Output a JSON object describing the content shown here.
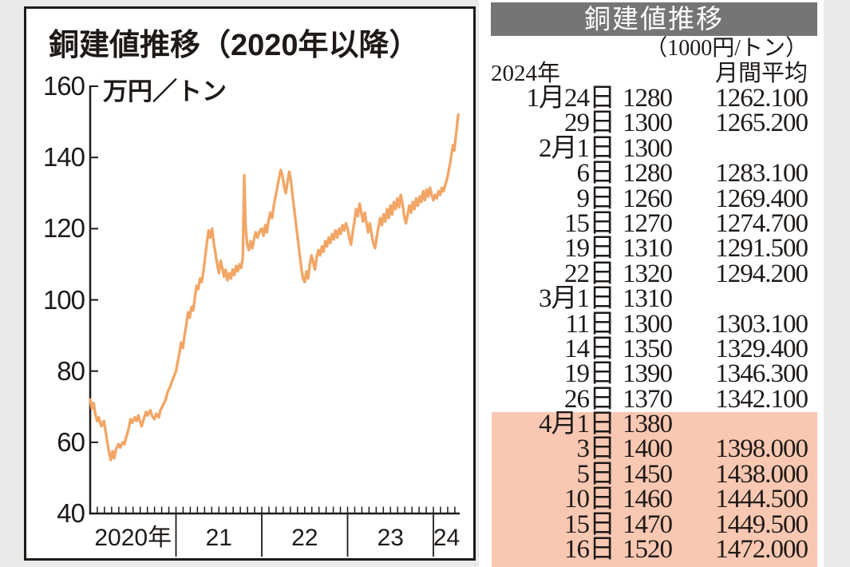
{
  "page": {
    "background": "#EAEAEA"
  },
  "chart": {
    "title": "銅建値推移（2020年以降）",
    "unit": "万円／トン",
    "line_color": "#F2A666",
    "axis_color": "#1F1A17"
  },
  "chart_data": {
    "type": "line",
    "title": "銅建値推移（2020年以降）",
    "ylabel": "万円／トン",
    "xlabel": "",
    "ylim": [
      40,
      160
    ],
    "xlim": [
      2020,
      2024.33
    ],
    "grid": false,
    "y_ticks": [
      160,
      140,
      120,
      100,
      80,
      60,
      40
    ],
    "x_tick_labels": [
      "2020年",
      "21",
      "22",
      "23",
      "24"
    ],
    "series": [
      {
        "name": "銅建値",
        "points": [
          [
            2020.0,
            72
          ],
          [
            2020.02,
            69.5
          ],
          [
            2020.04,
            71
          ],
          [
            2020.06,
            68
          ],
          [
            2020.08,
            66
          ],
          [
            2020.1,
            67
          ],
          [
            2020.13,
            64.5
          ],
          [
            2020.16,
            66
          ],
          [
            2020.18,
            63
          ],
          [
            2020.2,
            60
          ],
          [
            2020.22,
            57
          ],
          [
            2020.24,
            55
          ],
          [
            2020.26,
            57.5
          ],
          [
            2020.28,
            55.5
          ],
          [
            2020.3,
            58
          ],
          [
            2020.33,
            59.5
          ],
          [
            2020.35,
            58.5
          ],
          [
            2020.38,
            60
          ],
          [
            2020.4,
            59.5
          ],
          [
            2020.42,
            61.5
          ],
          [
            2020.45,
            64
          ],
          [
            2020.47,
            66.5
          ],
          [
            2020.49,
            65.5
          ],
          [
            2020.52,
            67
          ],
          [
            2020.54,
            66
          ],
          [
            2020.56,
            67.5
          ],
          [
            2020.58,
            66
          ],
          [
            2020.6,
            64.5
          ],
          [
            2020.63,
            67
          ],
          [
            2020.65,
            68.5
          ],
          [
            2020.67,
            67.5
          ],
          [
            2020.7,
            69
          ],
          [
            2020.72,
            67.5
          ],
          [
            2020.75,
            66.5
          ],
          [
            2020.77,
            68
          ],
          [
            2020.8,
            67
          ],
          [
            2020.82,
            69
          ],
          [
            2020.85,
            70.5
          ],
          [
            2020.88,
            72
          ],
          [
            2020.9,
            74
          ],
          [
            2020.93,
            75.5
          ],
          [
            2020.96,
            77.5
          ],
          [
            2021.0,
            80
          ],
          [
            2021.02,
            82.5
          ],
          [
            2021.04,
            85
          ],
          [
            2021.06,
            88
          ],
          [
            2021.08,
            86.5
          ],
          [
            2021.1,
            90
          ],
          [
            2021.12,
            93
          ],
          [
            2021.14,
            96.5
          ],
          [
            2021.16,
            95
          ],
          [
            2021.18,
            98
          ],
          [
            2021.2,
            97
          ],
          [
            2021.22,
            100.5
          ],
          [
            2021.24,
            104
          ],
          [
            2021.26,
            103
          ],
          [
            2021.28,
            106
          ],
          [
            2021.3,
            105
          ],
          [
            2021.32,
            108
          ],
          [
            2021.34,
            112
          ],
          [
            2021.36,
            116
          ],
          [
            2021.38,
            119.5
          ],
          [
            2021.4,
            117.5
          ],
          [
            2021.42,
            120
          ],
          [
            2021.44,
            116
          ],
          [
            2021.46,
            113
          ],
          [
            2021.48,
            110
          ],
          [
            2021.5,
            107.5
          ],
          [
            2021.52,
            111
          ],
          [
            2021.54,
            109
          ],
          [
            2021.56,
            106.5
          ],
          [
            2021.58,
            108.5
          ],
          [
            2021.6,
            105.5
          ],
          [
            2021.62,
            107.5
          ],
          [
            2021.64,
            106
          ],
          [
            2021.66,
            108.5
          ],
          [
            2021.68,
            107
          ],
          [
            2021.7,
            109.5
          ],
          [
            2021.72,
            108
          ],
          [
            2021.74,
            110
          ],
          [
            2021.76,
            109
          ],
          [
            2021.78,
            112
          ],
          [
            2021.795,
            135
          ],
          [
            2021.81,
            121
          ],
          [
            2021.83,
            115.5
          ],
          [
            2021.85,
            114
          ],
          [
            2021.87,
            116.5
          ],
          [
            2021.89,
            114.5
          ],
          [
            2021.91,
            117
          ],
          [
            2021.93,
            119
          ],
          [
            2021.95,
            117.5
          ],
          [
            2021.98,
            119.5
          ],
          [
            2022.0,
            120
          ],
          [
            2022.02,
            118
          ],
          [
            2022.04,
            121
          ],
          [
            2022.06,
            119
          ],
          [
            2022.08,
            122.5
          ],
          [
            2022.1,
            124.5
          ],
          [
            2022.12,
            123
          ],
          [
            2022.14,
            126.5
          ],
          [
            2022.16,
            129
          ],
          [
            2022.18,
            131.5
          ],
          [
            2022.2,
            134
          ],
          [
            2022.22,
            136.5
          ],
          [
            2022.24,
            135
          ],
          [
            2022.26,
            132
          ],
          [
            2022.28,
            130
          ],
          [
            2022.3,
            133
          ],
          [
            2022.32,
            136
          ],
          [
            2022.34,
            133.5
          ],
          [
            2022.36,
            129
          ],
          [
            2022.38,
            125
          ],
          [
            2022.4,
            121
          ],
          [
            2022.42,
            117
          ],
          [
            2022.44,
            113
          ],
          [
            2022.46,
            109
          ],
          [
            2022.48,
            106
          ],
          [
            2022.5,
            105
          ],
          [
            2022.52,
            108
          ],
          [
            2022.54,
            106
          ],
          [
            2022.56,
            110
          ],
          [
            2022.58,
            112.5
          ],
          [
            2022.6,
            110.5
          ],
          [
            2022.62,
            108.5
          ],
          [
            2022.64,
            112
          ],
          [
            2022.66,
            114
          ],
          [
            2022.68,
            112.5
          ],
          [
            2022.7,
            115
          ],
          [
            2022.72,
            113.5
          ],
          [
            2022.74,
            116.5
          ],
          [
            2022.76,
            115
          ],
          [
            2022.78,
            117.5
          ],
          [
            2022.8,
            116
          ],
          [
            2022.82,
            118.5
          ],
          [
            2022.84,
            117
          ],
          [
            2022.86,
            119.5
          ],
          [
            2022.88,
            117.5
          ],
          [
            2022.9,
            120
          ],
          [
            2022.92,
            118.5
          ],
          [
            2022.94,
            121
          ],
          [
            2022.96,
            119.5
          ],
          [
            2022.98,
            121.5
          ],
          [
            2023.0,
            120
          ],
          [
            2023.02,
            117.5
          ],
          [
            2023.04,
            115.5
          ],
          [
            2023.06,
            119
          ],
          [
            2023.08,
            122
          ],
          [
            2023.1,
            125.5
          ],
          [
            2023.12,
            123.5
          ],
          [
            2023.14,
            127
          ],
          [
            2023.16,
            124.5
          ],
          [
            2023.18,
            122
          ],
          [
            2023.2,
            124.5
          ],
          [
            2023.22,
            121.5
          ],
          [
            2023.24,
            119
          ],
          [
            2023.26,
            121.5
          ],
          [
            2023.28,
            118.5
          ],
          [
            2023.3,
            116
          ],
          [
            2023.32,
            114.5
          ],
          [
            2023.34,
            117.5
          ],
          [
            2023.36,
            120.5
          ],
          [
            2023.38,
            123
          ],
          [
            2023.4,
            121
          ],
          [
            2023.42,
            124
          ],
          [
            2023.44,
            122
          ],
          [
            2023.46,
            125.5
          ],
          [
            2023.48,
            123
          ],
          [
            2023.5,
            126.5
          ],
          [
            2023.52,
            124
          ],
          [
            2023.54,
            127.5
          ],
          [
            2023.56,
            125.5
          ],
          [
            2023.58,
            128.5
          ],
          [
            2023.6,
            126
          ],
          [
            2023.62,
            129.5
          ],
          [
            2023.64,
            127
          ],
          [
            2023.66,
            123.5
          ],
          [
            2023.68,
            121.5
          ],
          [
            2023.7,
            124
          ],
          [
            2023.72,
            126.5
          ],
          [
            2023.74,
            124.5
          ],
          [
            2023.76,
            127.5
          ],
          [
            2023.78,
            125.5
          ],
          [
            2023.8,
            128.5
          ],
          [
            2023.82,
            126.5
          ],
          [
            2023.84,
            129
          ],
          [
            2023.86,
            127.5
          ],
          [
            2023.88,
            130.5
          ],
          [
            2023.9,
            128
          ],
          [
            2023.92,
            131
          ],
          [
            2023.94,
            129
          ],
          [
            2023.96,
            131.5
          ],
          [
            2023.98,
            129.5
          ],
          [
            2024.0,
            128
          ],
          [
            2024.02,
            129.5
          ],
          [
            2024.04,
            128.5
          ],
          [
            2024.06,
            130.5
          ],
          [
            2024.08,
            129.5
          ],
          [
            2024.1,
            131.5
          ],
          [
            2024.12,
            130.5
          ],
          [
            2024.14,
            132.5
          ],
          [
            2024.16,
            134
          ],
          [
            2024.18,
            136.5
          ],
          [
            2024.2,
            139
          ],
          [
            2024.215,
            141.5
          ],
          [
            2024.23,
            143.5
          ],
          [
            2024.245,
            142
          ],
          [
            2024.26,
            145.5
          ],
          [
            2024.27,
            147.5
          ],
          [
            2024.28,
            150
          ],
          [
            2024.29,
            152
          ]
        ]
      }
    ]
  },
  "table": {
    "title": "銅建値推移",
    "unit": "（1000円/トン）",
    "year": "2024年",
    "avg_header": "月間平均",
    "header_bg": "#757575",
    "highlight_bg": "#F9C8B2",
    "rows": [
      {
        "date": "1月24日",
        "price": "1280",
        "avg": "1262.100",
        "highlight": false
      },
      {
        "date": "29日",
        "price": "1300",
        "avg": "1265.200",
        "highlight": false
      },
      {
        "date": "2月1日",
        "price": "1300",
        "avg": "",
        "highlight": false
      },
      {
        "date": "6日",
        "price": "1280",
        "avg": "1283.100",
        "highlight": false
      },
      {
        "date": "9日",
        "price": "1260",
        "avg": "1269.400",
        "highlight": false
      },
      {
        "date": "15日",
        "price": "1270",
        "avg": "1274.700",
        "highlight": false
      },
      {
        "date": "19日",
        "price": "1310",
        "avg": "1291.500",
        "highlight": false
      },
      {
        "date": "22日",
        "price": "1320",
        "avg": "1294.200",
        "highlight": false
      },
      {
        "date": "3月1日",
        "price": "1310",
        "avg": "",
        "highlight": false
      },
      {
        "date": "11日",
        "price": "1300",
        "avg": "1303.100",
        "highlight": false
      },
      {
        "date": "14日",
        "price": "1350",
        "avg": "1329.400",
        "highlight": false
      },
      {
        "date": "19日",
        "price": "1390",
        "avg": "1346.300",
        "highlight": false
      },
      {
        "date": "26日",
        "price": "1370",
        "avg": "1342.100",
        "highlight": false
      },
      {
        "date": "4月1日",
        "price": "1380",
        "avg": "",
        "highlight": true
      },
      {
        "date": "3日",
        "price": "1400",
        "avg": "1398.000",
        "highlight": true
      },
      {
        "date": "5日",
        "price": "1450",
        "avg": "1438.000",
        "highlight": true
      },
      {
        "date": "10日",
        "price": "1460",
        "avg": "1444.500",
        "highlight": true
      },
      {
        "date": "15日",
        "price": "1470",
        "avg": "1449.500",
        "highlight": true
      },
      {
        "date": "16日",
        "price": "1520",
        "avg": "1472.000",
        "highlight": true
      }
    ]
  }
}
